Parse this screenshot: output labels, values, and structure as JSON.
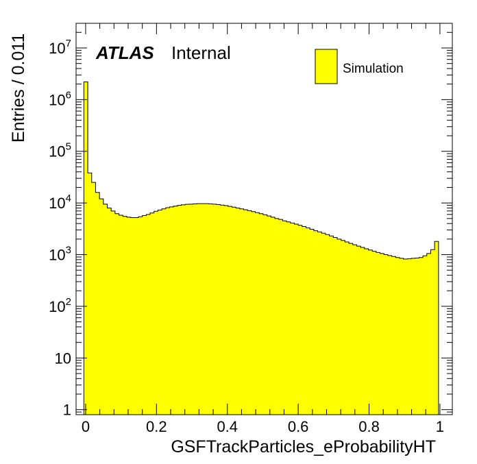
{
  "chart_data": {
    "type": "bar",
    "histtype": "step-filled",
    "xlabel": "GSFTrackParticles_eProbabilityHT",
    "ylabel": "Entries / 0.011",
    "bin_width": 0.011,
    "xlim": [
      -0.027,
      1.035
    ],
    "ylim": [
      0.8,
      30000000
    ],
    "yscale": "log",
    "x_ticks": [
      0,
      0.2,
      0.4,
      0.6,
      0.8,
      1
    ],
    "x_tick_labels": [
      "0",
      "0.2",
      "0.4",
      "0.6",
      "0.8",
      "1"
    ],
    "y_ticks": [
      1,
      10,
      100,
      1000,
      10000,
      100000,
      1000000,
      10000000
    ],
    "y_tick_labels": [
      {
        "base": "1",
        "exp": ""
      },
      {
        "base": "10",
        "exp": ""
      },
      {
        "base": "10",
        "exp": "2"
      },
      {
        "base": "10",
        "exp": "3"
      },
      {
        "base": "10",
        "exp": "4"
      },
      {
        "base": "10",
        "exp": "5"
      },
      {
        "base": "10",
        "exp": "6"
      },
      {
        "base": "10",
        "exp": "7"
      }
    ],
    "fill_color": "#ffff00",
    "edge_color": "#000000",
    "series": [
      {
        "name": "Simulation",
        "x_start": -0.005,
        "values": [
          2200000,
          38000,
          25000,
          16000,
          12000,
          9500,
          8000,
          7000,
          6200,
          5800,
          5500,
          5300,
          5200,
          5200,
          5400,
          5700,
          6000,
          6400,
          6900,
          7300,
          7700,
          8100,
          8400,
          8700,
          9000,
          9200,
          9400,
          9500,
          9600,
          9700,
          9700,
          9700,
          9600,
          9500,
          9300,
          9100,
          8900,
          8600,
          8300,
          8000,
          7700,
          7400,
          7100,
          6800,
          6500,
          6200,
          5900,
          5600,
          5300,
          5000,
          4800,
          4500,
          4300,
          4100,
          3900,
          3700,
          3500,
          3300,
          3100,
          2900,
          2750,
          2600,
          2450,
          2300,
          2150,
          2000,
          1880,
          1760,
          1650,
          1550,
          1460,
          1380,
          1300,
          1230,
          1160,
          1100,
          1050,
          1000,
          960,
          920,
          880,
          850,
          820,
          830,
          850,
          860,
          880,
          950,
          1050,
          1250,
          1800
        ]
      }
    ],
    "legend": {
      "position": "top-right",
      "entries": [
        "Simulation"
      ]
    },
    "annotations": {
      "brand": "ATLAS",
      "status": "Internal"
    }
  }
}
